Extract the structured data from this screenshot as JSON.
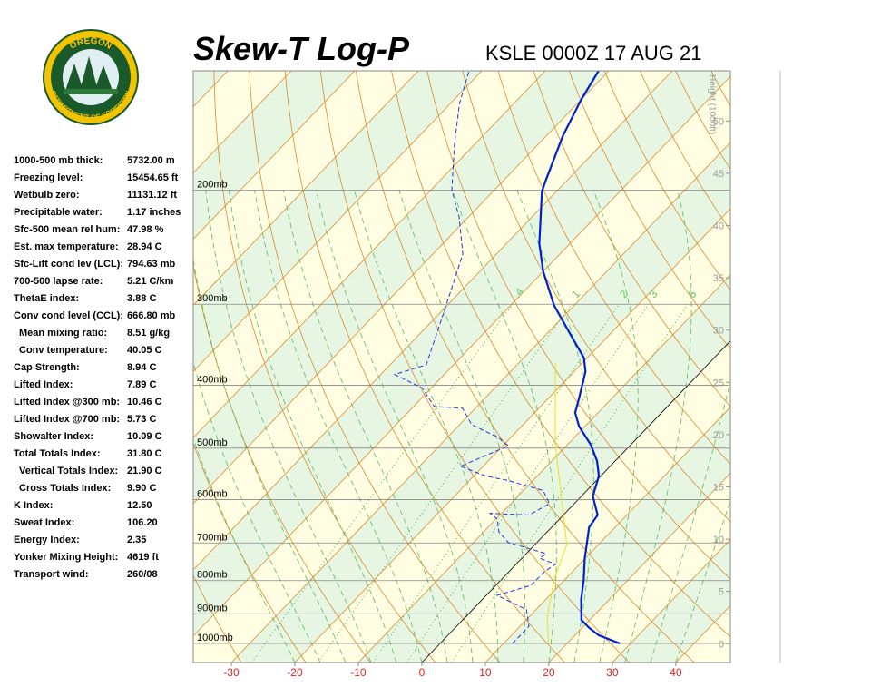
{
  "logo": {
    "top": "OREGON",
    "bottom": "DEPARTMENT OF FORESTRY"
  },
  "stats": [
    {
      "label": "1000-500 mb thick:",
      "value": "5732.00 m"
    },
    {
      "label": "Freezing level:",
      "value": "15454.65 ft"
    },
    {
      "label": "Wetbulb zero:",
      "value": "11131.12 ft"
    },
    {
      "label": "Precipitable water:",
      "value": "1.17 inches"
    },
    {
      "label": "Sfc-500 mean rel hum:",
      "value": "47.98 %"
    },
    {
      "label": "Est. max temperature:",
      "value": "28.94 C"
    },
    {
      "label": "Sfc-Lift cond lev (LCL):",
      "value": "794.63 mb"
    },
    {
      "label": "700-500 lapse rate:",
      "value": "5.21 C/km"
    },
    {
      "label": "ThetaE index:",
      "value": "3.88 C"
    },
    {
      "label": "Conv cond level (CCL):",
      "value": "666.80 mb"
    },
    {
      "label": "Mean mixing ratio:",
      "value": "8.51 g/kg"
    },
    {
      "label": "Conv temperature:",
      "value": "40.05 C"
    },
    {
      "label": "Cap Strength:",
      "value": "8.94 C"
    },
    {
      "label": "Lifted Index:",
      "value": "7.89 C"
    },
    {
      "label": "Lifted Index @300 mb:",
      "value": "10.46 C"
    },
    {
      "label": "Lifted Index @700 mb:",
      "value": "5.73 C"
    },
    {
      "label": "Showalter Index:",
      "value": "10.09 C"
    },
    {
      "label": "Total Totals Index:",
      "value": "31.80 C"
    },
    {
      "label": "Vertical Totals Index:",
      "value": "21.90 C"
    },
    {
      "label": "Cross Totals Index:",
      "value": "9.90 C"
    },
    {
      "label": "K Index:",
      "value": "12.50"
    },
    {
      "label": "Sweat Index:",
      "value": "106.20"
    },
    {
      "label": "Energy Index:",
      "value": "2.35"
    },
    {
      "label": "Yonker Mixing Height:",
      "value": "4619 ft"
    },
    {
      "label": "Transport wind:",
      "value": "260/08"
    }
  ],
  "chart_data": {
    "type": "skew-t",
    "title": "Skew-T Log-P",
    "subtitle": "KSLE 0000Z 17 AUG 21",
    "xlim": [
      -36,
      48.6
    ],
    "xticks": [
      -30,
      -20,
      -10,
      0,
      10,
      20,
      30,
      40
    ],
    "ylim": [
      1070,
      131
    ],
    "log_y": true,
    "yticks": [
      {
        "value": 1000,
        "label": "1000mb"
      },
      {
        "value": 900,
        "label": "900mb"
      },
      {
        "value": 800,
        "label": "800mb"
      },
      {
        "value": 700,
        "label": "700mb"
      },
      {
        "value": 600,
        "label": "600mb"
      },
      {
        "value": 500,
        "label": "500mb"
      },
      {
        "value": 400,
        "label": "400mb"
      },
      {
        "value": 300,
        "label": "300mb"
      },
      {
        "value": 200,
        "label": "200mb"
      }
    ],
    "y2label": "Height (1000ft)",
    "y2lim": [
      -1.8,
      54.8
    ],
    "y2ticks": [
      0,
      5,
      10,
      15,
      20,
      25,
      30,
      35,
      40,
      45,
      50
    ],
    "mixing_ratios": [
      {
        "value": 0.4,
        "label": ".4"
      },
      1,
      2,
      3,
      5
    ],
    "series": [
      {
        "color": "#0022cc",
        "dash": false,
        "pressure": [
          1000,
          971,
          947,
          920,
          854,
          800,
          739,
          686,
          662,
          634,
          593,
          552,
          523,
          494,
          463,
          441,
          420,
          381,
          363,
          329,
          301,
          267,
          242,
          201,
          193,
          165,
          145,
          131
        ],
        "values": [
          28.3,
          23.7,
          21.2,
          18.7,
          15.5,
          13.1,
          9.9,
          7.2,
          5.9,
          5.4,
          1.8,
          -0.3,
          -2.9,
          -6.3,
          -10.9,
          -13.6,
          -15.1,
          -18.2,
          -20.5,
          -27.2,
          -33.2,
          -40.0,
          -44.8,
          -52.3,
          -53.4,
          -57.4,
          -60.0,
          -61.6
        ]
      },
      {
        "color": "#2233dd",
        "dash": true,
        "pressure": [
          1000,
          941,
          887,
          843,
          814,
          775,
          755,
          739,
          727,
          699,
          673,
          643,
          630,
          634,
          609,
          581,
          561,
          552,
          533,
          496,
          481,
          460,
          434,
          431,
          404,
          385,
          372,
          304,
          251,
          220,
          200,
          170,
          147,
          131
        ],
        "values": [
          11.4,
          11.4,
          8.5,
          1.7,
          5.5,
          5.6,
          6.2,
          2.8,
          3.1,
          -4.5,
          -7.6,
          -9.8,
          -11.8,
          -5.4,
          -3.9,
          -6.9,
          -13.9,
          -18.1,
          -23.6,
          -19.1,
          -22.1,
          -28.1,
          -32.0,
          -36.8,
          -41.4,
          -47.8,
          -44.3,
          -49.9,
          -55.3,
          -61.5,
          -66.7,
          -73.2,
          -78.6,
          -82.0
        ]
      },
      {
        "color": "#e8e020",
        "dash": false,
        "pressure": [
          1000,
          911,
          800,
          704,
          618,
          494,
          369
        ],
        "values": [
          17.1,
          12.9,
          8.4,
          5.0,
          -1.2,
          -11.9,
          -24.3
        ]
      }
    ]
  }
}
